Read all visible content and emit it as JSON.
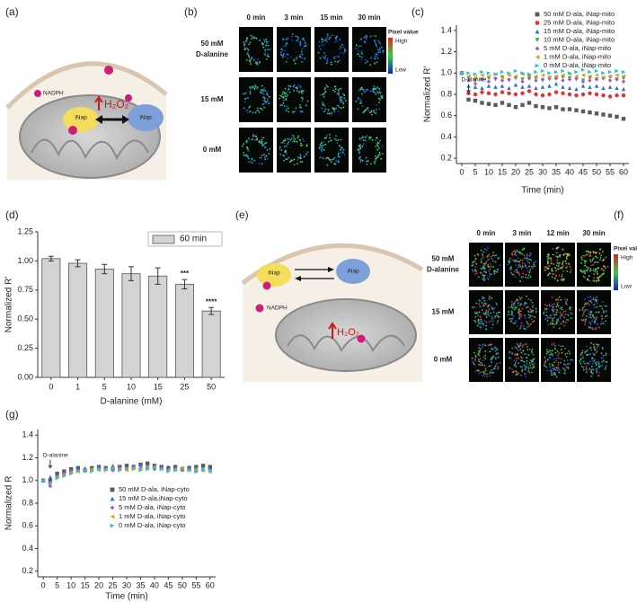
{
  "panels": {
    "a": {
      "panel_label": "(a)",
      "nadph": "NADPH",
      "inap_reduced": "iNap",
      "inap_oxidized": "iNap",
      "h2o2": "H₂O₂"
    },
    "b": {
      "panel_label": "(b)",
      "columns": [
        "0 min",
        "3 min",
        "15 min",
        "30 min"
      ],
      "rows": [
        {
          "label": "50 mM",
          "sublabel": "D-alanine"
        },
        {
          "label": "15 mM"
        },
        {
          "label": "0 mM"
        }
      ],
      "colorbar": {
        "title": "Pixel value",
        "high": "High",
        "low": "Low"
      }
    },
    "e": {
      "panel_label": "(e)",
      "nadph": "NADPH",
      "inap_reduced": "iNap",
      "inap_oxidized": "iNap",
      "h2o2": "H₂O₂"
    },
    "f": {
      "panel_label": "(f)",
      "columns": [
        "0 min",
        "3 min",
        "12 min",
        "30 min"
      ],
      "rows": [
        {
          "label": "50 mM",
          "sublabel": "D-alanine"
        },
        {
          "label": "15 mM"
        },
        {
          "label": "0 mM"
        }
      ],
      "colorbar": {
        "title": "Pixel value",
        "high": "High",
        "low": "Low"
      }
    }
  },
  "chart_data": [
    {
      "type": "line",
      "panel_label": "(c)",
      "show_lines": false,
      "x_label": "Time (min)",
      "y_label": "Normalized R'",
      "annotation": "D-alanine",
      "legend": "upper right",
      "x": [
        0,
        2.5,
        5,
        7.5,
        10,
        12.5,
        15,
        17.5,
        20,
        22.5,
        25,
        27.5,
        30,
        32.5,
        35,
        37.5,
        40,
        42.5,
        45,
        47.5,
        50,
        52.5,
        55,
        57.5,
        60
      ],
      "xlim": [
        -2,
        62
      ],
      "xticks": [
        0,
        5,
        10,
        15,
        20,
        25,
        30,
        35,
        40,
        45,
        50,
        55,
        60
      ],
      "ylim": [
        0.15,
        1.45
      ],
      "yticks": [
        0.2,
        0.4,
        0.6,
        0.8,
        {
          "value": 1,
          "label": "1.0"
        },
        1.2,
        1.4
      ],
      "series": [
        {
          "name": "50 mM D-ala, iNap-mito",
          "color": "#5a5a5a",
          "marker": "square",
          "values": [
            1.0,
            0.75,
            0.74,
            0.72,
            0.71,
            0.7,
            0.72,
            0.7,
            0.68,
            0.7,
            0.72,
            0.69,
            0.68,
            0.67,
            0.68,
            0.66,
            0.66,
            0.65,
            0.64,
            0.63,
            0.62,
            0.61,
            0.6,
            0.59,
            0.57
          ]
        },
        {
          "name": "25 mM D-ala, iNap-mito",
          "color": "#e8312f",
          "marker": "circle",
          "values": [
            1.0,
            0.81,
            0.8,
            0.82,
            0.81,
            0.8,
            0.82,
            0.81,
            0.8,
            0.81,
            0.83,
            0.8,
            0.79,
            0.8,
            0.82,
            0.81,
            0.8,
            0.79,
            0.8,
            0.81,
            0.8,
            0.79,
            0.78,
            0.79,
            0.79
          ]
        },
        {
          "name": "15 mM D-ala, iNap-mito",
          "color": "#2a6fdb",
          "marker": "up",
          "values": [
            1.0,
            0.88,
            0.87,
            0.86,
            0.88,
            0.87,
            0.88,
            0.86,
            0.89,
            0.87,
            0.88,
            0.86,
            0.87,
            0.88,
            0.9,
            0.87,
            0.86,
            0.85,
            0.88,
            0.87,
            0.88,
            0.86,
            0.87,
            0.86,
            0.85
          ]
        },
        {
          "name": "10 mM D-ala, iNap-mito",
          "color": "#2fa84f",
          "marker": "down",
          "values": [
            1.0,
            0.95,
            0.93,
            0.94,
            0.95,
            0.94,
            0.96,
            0.93,
            0.95,
            0.94,
            0.96,
            0.95,
            0.93,
            0.94,
            0.95,
            0.96,
            0.95,
            0.94,
            0.93,
            0.95,
            0.94,
            0.95,
            0.96,
            0.94,
            0.95
          ]
        },
        {
          "name": "5 mM D-ala, iNap-mito",
          "color": "#b04fc8",
          "marker": "diamond",
          "values": [
            1.0,
            0.93,
            0.9,
            0.94,
            0.92,
            0.95,
            0.93,
            0.94,
            0.96,
            0.92,
            0.95,
            0.93,
            0.94,
            0.96,
            0.95,
            0.93,
            0.94,
            0.95,
            0.92,
            0.93,
            0.94,
            0.95,
            0.93,
            0.94,
            0.92
          ]
        },
        {
          "name": "1 mM D-ala, iNap-mito",
          "color": "#e59a1c",
          "marker": "left",
          "values": [
            1.0,
            0.97,
            0.96,
            0.98,
            0.97,
            0.99,
            0.96,
            0.98,
            0.97,
            0.99,
            0.98,
            0.97,
            0.98,
            0.96,
            0.97,
            0.98,
            0.99,
            0.97,
            0.98,
            0.97,
            0.98,
            0.96,
            0.97,
            0.98,
            0.97
          ]
        },
        {
          "name": "0 mM D-ala, iNap-mito",
          "color": "#1fc3d8",
          "marker": "right",
          "values": [
            1.0,
            1.0,
            0.99,
            1.01,
            1.0,
            0.99,
            1.01,
            1.0,
            1.02,
            1.0,
            0.99,
            1.01,
            1.02,
            1.0,
            1.01,
            1.02,
            1.0,
            1.01,
            1.03,
            1.01,
            1.02,
            1.0,
            1.01,
            1.02,
            1.01
          ]
        }
      ]
    },
    {
      "type": "bar",
      "panel_label": "(d)",
      "x_label": "D-alanine (mM)",
      "y_label": "Normalized R'",
      "legend": "upper right",
      "categories": [
        "0",
        "1",
        "5",
        "10",
        "15",
        "25",
        "50"
      ],
      "ylim": [
        0,
        1.25
      ],
      "yticks": [
        {
          "value": 0,
          "label": "0.00"
        },
        0.25,
        {
          "value": 0.5,
          "label": "0.50"
        },
        0.75,
        {
          "value": 1,
          "label": "1.00"
        },
        1.25
      ],
      "series": [
        {
          "name": "60 min",
          "color": "#d3d3d3",
          "values": [
            1.02,
            0.98,
            0.93,
            0.89,
            0.87,
            0.8,
            0.57
          ],
          "errors": [
            0.02,
            0.03,
            0.04,
            0.06,
            0.07,
            0.04,
            0.03
          ]
        }
      ],
      "annotations": [
        {
          "category": "25",
          "text": "***"
        },
        {
          "category": "50",
          "text": "****"
        }
      ]
    },
    {
      "type": "line",
      "panel_label": "(g)",
      "show_lines": false,
      "x_label": "Time (min)",
      "y_label": "Normalized R",
      "annotation": "D-alanine",
      "legend": "center right",
      "x": [
        0,
        2.5,
        5,
        7.5,
        10,
        12.5,
        15,
        17.5,
        20,
        22.5,
        25,
        27.5,
        30,
        32.5,
        35,
        37.5,
        40,
        42.5,
        45,
        47.5,
        50,
        52.5,
        55,
        57.5,
        60
      ],
      "xlim": [
        -2,
        62
      ],
      "xticks": [
        0,
        5,
        10,
        15,
        20,
        25,
        30,
        35,
        40,
        45,
        50,
        55,
        60
      ],
      "ylim": [
        0.15,
        1.45
      ],
      "yticks": [
        0.2,
        0.4,
        0.6,
        0.8,
        {
          "value": 1,
          "label": "1.0"
        },
        1.2,
        1.4
      ],
      "series": [
        {
          "name": "50 mM D-ala, iNap-cyto",
          "color": "#5a5a5a",
          "marker": "square",
          "values": [
            1.0,
            1.0,
            1.06,
            1.08,
            1.1,
            1.11,
            1.09,
            1.11,
            1.12,
            1.11,
            1.1,
            1.12,
            1.13,
            1.12,
            1.14,
            1.15,
            1.13,
            1.12,
            1.11,
            1.12,
            1.1,
            1.11,
            1.12,
            1.13,
            1.12
          ]
        },
        {
          "name": "15 mM D-ala,iNap-cyto",
          "color": "#2a6fdb",
          "marker": "up",
          "values": [
            1.0,
            1.03,
            1.05,
            1.07,
            1.09,
            1.1,
            1.11,
            1.1,
            1.12,
            1.11,
            1.13,
            1.12,
            1.11,
            1.13,
            1.14,
            1.13,
            1.12,
            1.11,
            1.12,
            1.1,
            1.11,
            1.12,
            1.11,
            1.1,
            1.11
          ]
        },
        {
          "name": "5 mM D-ala, iNap-cyto",
          "color": "#b04fc8",
          "marker": "diamond",
          "values": [
            1.0,
            0.95,
            1.04,
            1.06,
            1.08,
            1.09,
            1.1,
            1.09,
            1.11,
            1.1,
            1.09,
            1.11,
            1.1,
            1.12,
            1.11,
            1.12,
            1.1,
            1.11,
            1.09,
            1.1,
            1.09,
            1.1,
            1.08,
            1.09,
            1.08
          ]
        },
        {
          "name": "1 mM D-ala, iNap-cyto",
          "color": "#e59a1c",
          "marker": "left",
          "values": [
            1.0,
            0.98,
            1.03,
            1.05,
            1.07,
            1.08,
            1.09,
            1.1,
            1.09,
            1.1,
            1.11,
            1.1,
            1.09,
            1.11,
            1.1,
            1.11,
            1.12,
            1.1,
            1.09,
            1.1,
            1.11,
            1.09,
            1.1,
            1.09,
            1.08
          ]
        },
        {
          "name": "0 mM D-ala, iNap-cyto",
          "color": "#1fc3d8",
          "marker": "right",
          "values": [
            1.0,
            0.97,
            1.02,
            1.04,
            1.06,
            1.08,
            1.09,
            1.08,
            1.1,
            1.09,
            1.1,
            1.09,
            1.11,
            1.1,
            1.09,
            1.1,
            1.11,
            1.1,
            1.08,
            1.09,
            1.1,
            1.09,
            1.08,
            1.1,
            1.09
          ]
        }
      ]
    }
  ]
}
